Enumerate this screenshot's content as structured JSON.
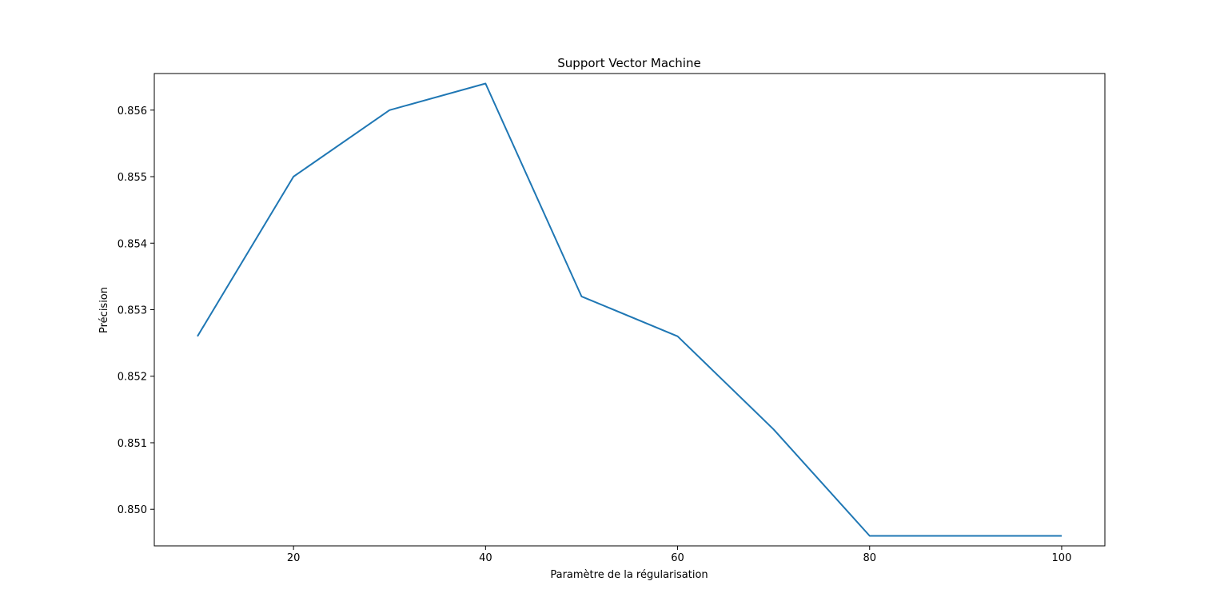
{
  "chart_data": {
    "type": "line",
    "title": "Support Vector Machine",
    "xlabel": "Paramètre de la régularisation",
    "ylabel": "Précision",
    "xlim": [
      5.5,
      104.5
    ],
    "ylim": [
      0.84945,
      0.85655
    ],
    "xticks": [
      20,
      40,
      60,
      80,
      100
    ],
    "yticks": [
      0.85,
      0.851,
      0.852,
      0.853,
      0.854,
      0.855,
      0.856
    ],
    "ytick_labels": [
      "0.850",
      "0.851",
      "0.852",
      "0.853",
      "0.854",
      "0.855",
      "0.856"
    ],
    "grid": false,
    "series": [
      {
        "color": "#1f77b4",
        "x": [
          10,
          20,
          30,
          40,
          50,
          60,
          70,
          80,
          90,
          100
        ],
        "y": [
          0.8526,
          0.855,
          0.856,
          0.8564,
          0.8532,
          0.8526,
          0.8512,
          0.8496,
          0.8496,
          0.8496
        ]
      }
    ]
  }
}
